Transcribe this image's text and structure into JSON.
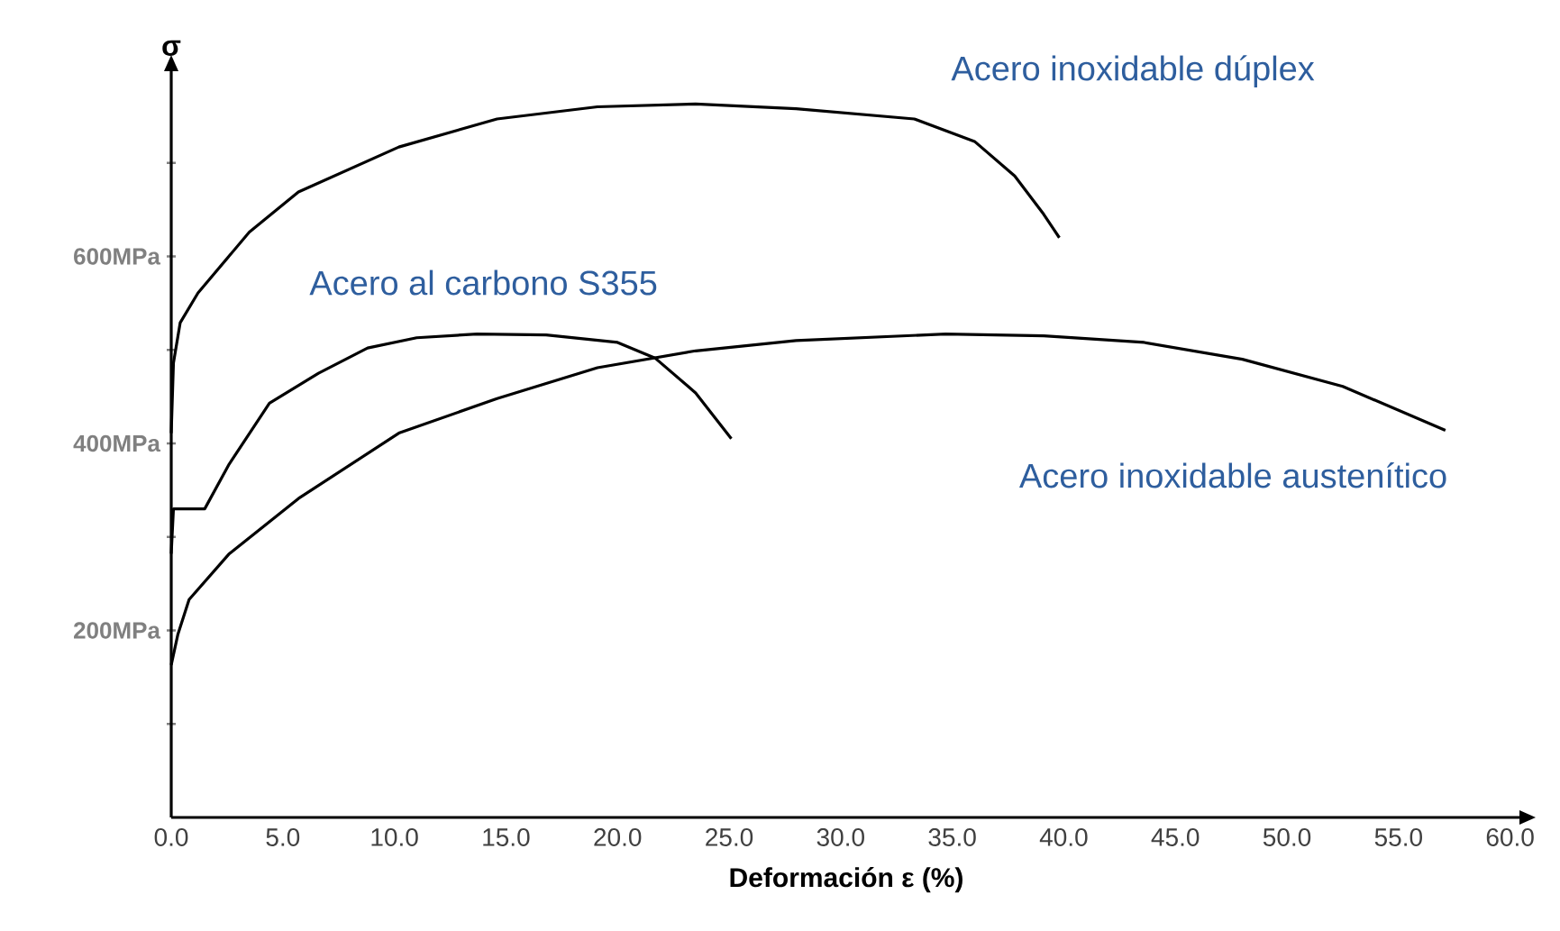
{
  "chart_data": {
    "type": "line",
    "xlabel": "Deformación ε (%)",
    "ylabel": "σ",
    "xlim": [
      0,
      60.5
    ],
    "ylim": [
      0,
      800
    ],
    "xticks": [
      {
        "value": 0,
        "label": "0.0"
      },
      {
        "value": 5,
        "label": "5.0"
      },
      {
        "value": 10,
        "label": "10.0"
      },
      {
        "value": 15,
        "label": "15.0"
      },
      {
        "value": 20,
        "label": "20.0"
      },
      {
        "value": 25,
        "label": "25.0"
      },
      {
        "value": 30,
        "label": "30.0"
      },
      {
        "value": 35,
        "label": "35.0"
      },
      {
        "value": 40,
        "label": "40.0"
      },
      {
        "value": 45,
        "label": "45.0"
      },
      {
        "value": 50,
        "label": "50.0"
      },
      {
        "value": 55,
        "label": "55.0"
      },
      {
        "value": 60,
        "label": "60.0"
      }
    ],
    "yticks": [
      {
        "value": 100,
        "label": null
      },
      {
        "value": 200,
        "label": "200MPa"
      },
      {
        "value": 300,
        "label": null
      },
      {
        "value": 400,
        "label": "400MPa"
      },
      {
        "value": 500,
        "label": null
      },
      {
        "value": 600,
        "label": "600MPa"
      },
      {
        "value": 700,
        "label": null
      }
    ],
    "grid": false,
    "legend": false,
    "marker": "none",
    "line_style": "solid",
    "series": [
      {
        "name": "Acero inoxidable dúplex",
        "color": "#000000",
        "x": [
          0,
          0.1,
          0.4,
          1.2,
          3.5,
          5.7,
          10.2,
          14.6,
          19.1,
          23.5,
          28,
          33.3,
          36,
          37.8,
          39.1,
          39.8
        ],
        "values": [
          411,
          486,
          529,
          561,
          626,
          669,
          717,
          747,
          760,
          763,
          758,
          747,
          723,
          686,
          645,
          620
        ]
      },
      {
        "name": "Acero al carbono S355",
        "color": "#000000",
        "x": [
          0,
          0.1,
          1.5,
          2.6,
          4.4,
          6.6,
          8.8,
          11,
          13.7,
          16.8,
          20,
          21.7,
          23.5,
          25.1
        ],
        "values": [
          282,
          330,
          330,
          378,
          443,
          475,
          502,
          513,
          517,
          516,
          508,
          491,
          454,
          405
        ]
      },
      {
        "name": "Acero inoxidable austenítico",
        "color": "#000000",
        "x": [
          0,
          0.3,
          0.8,
          2.6,
          5.7,
          10.2,
          14.6,
          19.1,
          23.5,
          28,
          34.7,
          39.1,
          43.6,
          48,
          52.5,
          57.1
        ],
        "values": [
          163,
          196,
          233,
          282,
          341,
          411,
          448,
          481,
          499,
          510,
          517,
          515,
          508,
          490,
          461,
          414
        ]
      }
    ]
  }
}
